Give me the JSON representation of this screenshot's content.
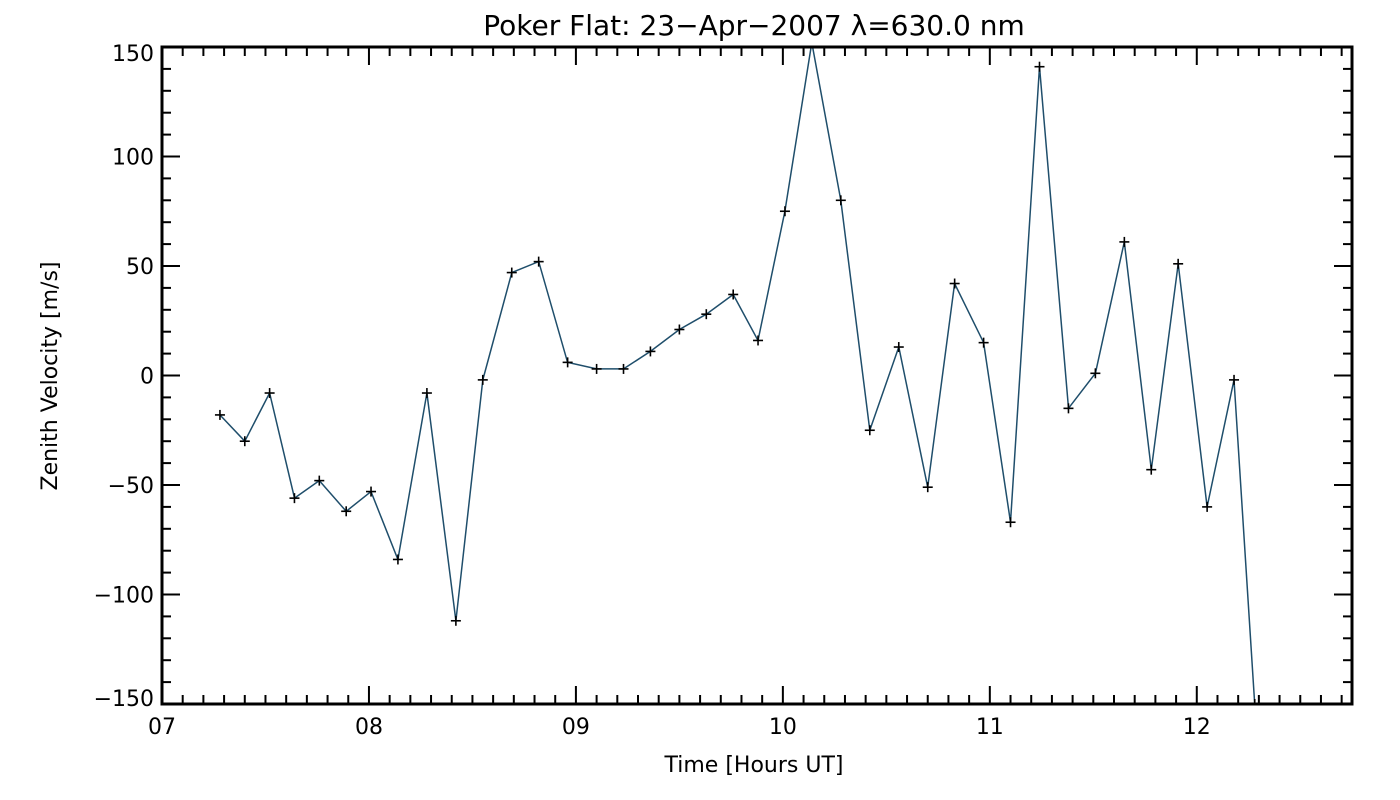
{
  "chart_data": {
    "type": "line",
    "title": "Poker Flat: 23−Apr−2007 λ=630.0 nm",
    "xlabel": "Time [Hours UT]",
    "ylabel": "Zenith Velocity [m/s]",
    "xlim": [
      7.0,
      12.75
    ],
    "ylim": [
      -150,
      150
    ],
    "x_ticks": [
      7,
      8,
      9,
      10,
      11,
      12
    ],
    "x_tick_labels": [
      "07",
      "08",
      "09",
      "10",
      "11",
      "12"
    ],
    "y_ticks": [
      -150,
      -100,
      -50,
      0,
      50,
      100,
      150
    ],
    "y_tick_labels": [
      "−150",
      "−100",
      "−50",
      "0",
      "50",
      "100",
      "150"
    ],
    "grid": false,
    "line_color": "#1f4e6b",
    "marker": "plus",
    "series": [
      {
        "x": [
          7.28,
          7.4,
          7.52,
          7.64,
          7.76,
          7.89,
          8.01,
          8.14,
          8.28,
          8.42,
          8.55,
          8.69,
          8.82,
          8.96,
          9.1,
          9.23,
          9.36,
          9.5,
          9.63,
          9.76,
          9.88,
          10.01,
          10.14,
          10.28,
          10.42,
          10.56,
          10.7,
          10.83,
          10.97,
          11.1,
          11.24,
          11.38,
          11.51,
          11.65,
          11.78,
          11.91,
          12.05,
          12.18,
          12.28
        ],
        "y": [
          -18,
          -30,
          -8,
          -56,
          -48,
          -62,
          -53,
          -84,
          -8,
          -112,
          -2,
          47,
          52,
          6,
          3,
          3,
          11,
          21,
          28,
          37,
          16,
          75,
          152,
          80,
          -25,
          13,
          -51,
          42,
          15,
          -67,
          141,
          -15,
          1,
          61,
          -43,
          51,
          -60,
          -2,
          -150
        ]
      }
    ]
  }
}
